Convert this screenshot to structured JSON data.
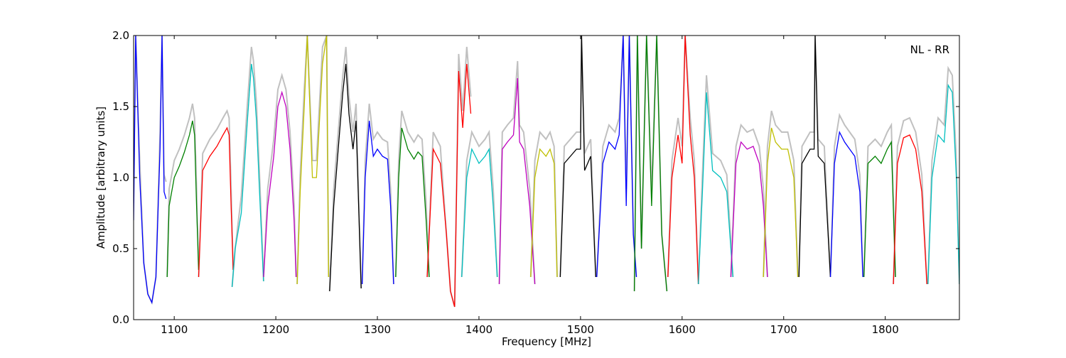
{
  "chart_data": {
    "type": "line",
    "title": "",
    "annotation": "NL - RR",
    "xlabel": "Frequency [MHz]",
    "ylabel": "Amplitude [arbitrary units]",
    "xlim": [
      1060,
      1873
    ],
    "ylim": [
      0.0,
      2.0
    ],
    "x_ticks": [
      1100,
      1200,
      1300,
      1400,
      1500,
      1600,
      1700,
      1800
    ],
    "y_ticks": [
      "0.0",
      "0.5",
      "1.0",
      "1.5",
      "2.0"
    ],
    "grid": false,
    "legend": "none",
    "background_color": "#c0c0c0",
    "series": [
      {
        "color": "#0000ff",
        "x": [
          1060,
          1062,
          1066,
          1070,
          1074,
          1078,
          1082,
          1086,
          1088,
          1090,
          1092
        ],
        "y": [
          0.7,
          2.0,
          1.0,
          0.4,
          0.18,
          0.12,
          0.3,
          1.2,
          2.0,
          0.9,
          0.85
        ]
      },
      {
        "color": "#008000",
        "x": [
          1093,
          1095,
          1100,
          1105,
          1110,
          1115,
          1118,
          1120,
          1122,
          1124
        ],
        "y": [
          0.3,
          0.8,
          1.0,
          1.08,
          1.18,
          1.3,
          1.4,
          1.3,
          0.8,
          0.35
        ]
      },
      {
        "color": "#ff0000",
        "x": [
          1124,
          1128,
          1135,
          1142,
          1148,
          1152,
          1154,
          1156,
          1158
        ],
        "y": [
          0.3,
          1.05,
          1.15,
          1.22,
          1.3,
          1.35,
          1.3,
          0.8,
          0.35
        ]
      },
      {
        "color": "#00bfbf",
        "x": [
          1157,
          1160,
          1166,
          1172,
          1176,
          1178,
          1181,
          1184,
          1188
        ],
        "y": [
          0.23,
          0.5,
          0.75,
          1.4,
          1.8,
          1.7,
          1.4,
          0.9,
          0.27
        ]
      },
      {
        "color": "#bf00bf",
        "x": [
          1188,
          1192,
          1198,
          1202,
          1206,
          1210,
          1214,
          1218,
          1220
        ],
        "y": [
          0.3,
          0.8,
          1.15,
          1.5,
          1.6,
          1.5,
          1.2,
          0.7,
          0.3
        ]
      },
      {
        "color": "#bfbf00",
        "x": [
          1221,
          1224,
          1228,
          1231,
          1236,
          1240,
          1246,
          1250,
          1252
        ],
        "y": [
          0.25,
          0.9,
          1.5,
          2.0,
          1.0,
          1.0,
          1.8,
          2.0,
          0.3
        ]
      },
      {
        "color": "#000000",
        "x": [
          1253,
          1257,
          1262,
          1266,
          1269,
          1272,
          1276,
          1279,
          1284
        ],
        "y": [
          0.2,
          0.8,
          1.25,
          1.6,
          1.8,
          1.45,
          1.2,
          1.4,
          0.22
        ]
      },
      {
        "color": "#0000ff",
        "x": [
          1285,
          1288,
          1292,
          1296,
          1300,
          1305,
          1310,
          1313,
          1316
        ],
        "y": [
          0.25,
          1.0,
          1.4,
          1.15,
          1.2,
          1.15,
          1.13,
          0.8,
          0.25
        ]
      },
      {
        "color": "#008000",
        "x": [
          1318,
          1321,
          1324,
          1330,
          1336,
          1340,
          1344,
          1348,
          1351
        ],
        "y": [
          0.3,
          1.0,
          1.35,
          1.2,
          1.13,
          1.18,
          1.15,
          0.7,
          0.3
        ]
      },
      {
        "color": "#ff0000",
        "x": [
          1349,
          1355,
          1362,
          1368,
          1372,
          1376,
          1380,
          1384,
          1388,
          1392
        ],
        "y": [
          0.3,
          1.2,
          1.1,
          0.6,
          0.2,
          0.09,
          1.75,
          1.35,
          1.8,
          1.45
        ]
      },
      {
        "color": "#00bfbf",
        "x": [
          1383,
          1388,
          1393,
          1400,
          1406,
          1410,
          1414,
          1418
        ],
        "y": [
          0.3,
          1.0,
          1.2,
          1.1,
          1.15,
          1.2,
          0.8,
          0.3
        ]
      },
      {
        "color": "#bf00bf",
        "x": [
          1420,
          1423,
          1428,
          1434,
          1438,
          1440,
          1444,
          1450,
          1455
        ],
        "y": [
          0.25,
          1.2,
          1.25,
          1.3,
          1.7,
          1.25,
          1.2,
          0.8,
          0.25
        ]
      },
      {
        "color": "#bfbf00",
        "x": [
          1451,
          1455,
          1460,
          1466,
          1470,
          1474,
          1477
        ],
        "y": [
          0.3,
          1.0,
          1.2,
          1.15,
          1.2,
          1.1,
          0.3
        ]
      },
      {
        "color": "#000000",
        "x": [
          1480,
          1484,
          1490,
          1496,
          1500,
          1501,
          1504,
          1510,
          1515
        ],
        "y": [
          0.3,
          1.1,
          1.15,
          1.2,
          1.2,
          2.0,
          1.05,
          1.15,
          0.3
        ]
      },
      {
        "color": "#0000ff",
        "x": [
          1516,
          1522,
          1528,
          1534,
          1538,
          1542,
          1545,
          1548,
          1552,
          1555
        ],
        "y": [
          0.3,
          1.1,
          1.25,
          1.2,
          1.3,
          2.0,
          0.8,
          2.0,
          0.6,
          0.3
        ]
      },
      {
        "color": "#008000",
        "x": [
          1553,
          1556,
          1560,
          1565,
          1570,
          1575,
          1580,
          1585
        ],
        "y": [
          0.2,
          2.0,
          0.5,
          2.0,
          0.8,
          2.0,
          0.6,
          0.2
        ]
      },
      {
        "color": "#ff0000",
        "x": [
          1586,
          1590,
          1596,
          1600,
          1603,
          1608,
          1612,
          1616
        ],
        "y": [
          0.3,
          1.0,
          1.3,
          1.1,
          2.0,
          1.3,
          1.0,
          0.25
        ]
      },
      {
        "color": "#00bfbf",
        "x": [
          1616,
          1620,
          1624,
          1630,
          1638,
          1644,
          1650
        ],
        "y": [
          0.25,
          0.9,
          1.6,
          1.05,
          1.0,
          0.9,
          0.3
        ]
      },
      {
        "color": "#bf00bf",
        "x": [
          1648,
          1653,
          1658,
          1664,
          1670,
          1676,
          1680,
          1684
        ],
        "y": [
          0.3,
          1.1,
          1.25,
          1.2,
          1.22,
          1.1,
          0.8,
          0.3
        ]
      },
      {
        "color": "#bfbf00",
        "x": [
          1680,
          1684,
          1688,
          1692,
          1698,
          1704,
          1710,
          1714
        ],
        "y": [
          0.3,
          1.1,
          1.35,
          1.25,
          1.2,
          1.2,
          1.0,
          0.3
        ]
      },
      {
        "color": "#000000",
        "x": [
          1715,
          1718,
          1722,
          1726,
          1730,
          1731,
          1734,
          1740,
          1746
        ],
        "y": [
          0.3,
          1.1,
          1.15,
          1.2,
          1.2,
          2.0,
          1.15,
          1.1,
          0.3
        ]
      },
      {
        "color": "#0000ff",
        "x": [
          1746,
          1750,
          1755,
          1760,
          1765,
          1770,
          1775,
          1778
        ],
        "y": [
          0.3,
          1.1,
          1.32,
          1.25,
          1.2,
          1.15,
          0.9,
          0.3
        ]
      },
      {
        "color": "#008000",
        "x": [
          1779,
          1783,
          1790,
          1796,
          1802,
          1806,
          1810
        ],
        "y": [
          0.3,
          1.1,
          1.15,
          1.1,
          1.2,
          1.25,
          0.3
        ]
      },
      {
        "color": "#ff0000",
        "x": [
          1808,
          1812,
          1818,
          1824,
          1830,
          1836,
          1841
        ],
        "y": [
          0.25,
          1.1,
          1.28,
          1.3,
          1.2,
          0.9,
          0.25
        ]
      },
      {
        "color": "#00bfbf",
        "x": [
          1842,
          1846,
          1852,
          1858,
          1862,
          1866,
          1870,
          1873
        ],
        "y": [
          0.25,
          1.0,
          1.3,
          1.25,
          1.65,
          1.6,
          1.0,
          0.25
        ]
      }
    ]
  }
}
